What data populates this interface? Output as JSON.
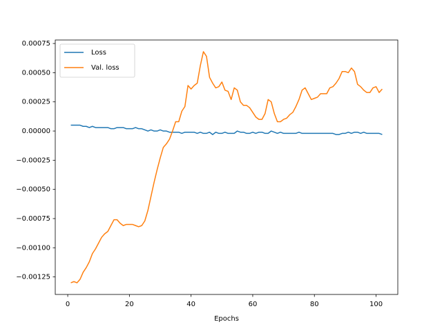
{
  "chart_data": {
    "type": "line",
    "xlabel": "Epochs",
    "x": [
      1,
      2,
      3,
      4,
      5,
      6,
      7,
      8,
      9,
      10,
      11,
      12,
      13,
      14,
      15,
      16,
      17,
      18,
      19,
      20,
      21,
      22,
      23,
      24,
      25,
      26,
      27,
      28,
      29,
      30,
      31,
      32,
      33,
      34,
      35,
      36,
      37,
      38,
      39,
      40,
      41,
      42,
      43,
      44,
      45,
      46,
      47,
      48,
      49,
      50,
      51,
      52,
      53,
      54,
      55,
      56,
      57,
      58,
      59,
      60,
      61,
      62,
      63,
      64,
      65,
      66,
      67,
      68,
      69,
      70,
      71,
      72,
      73,
      74,
      75,
      76,
      77,
      78,
      79,
      80,
      81,
      82,
      83,
      84,
      85,
      86,
      87,
      88,
      89,
      90,
      91,
      92,
      93,
      94,
      95,
      96,
      97,
      98,
      99,
      100,
      101,
      102
    ],
    "series": [
      {
        "name": "Loss",
        "color": "#1f77b4",
        "values": [
          5e-05,
          5e-05,
          5e-05,
          5e-05,
          4e-05,
          4e-05,
          3e-05,
          4e-05,
          3e-05,
          3e-05,
          3e-05,
          3e-05,
          3e-05,
          2e-05,
          2e-05,
          3e-05,
          3e-05,
          3e-05,
          2e-05,
          2e-05,
          2e-05,
          3e-05,
          2e-05,
          2e-05,
          1e-05,
          0.0,
          1e-05,
          0.0,
          0.0,
          1e-05,
          0.0,
          0.0,
          -1e-05,
          -1e-05,
          -1e-05,
          -1e-05,
          -2e-05,
          -1e-05,
          -1e-05,
          -1e-05,
          -1e-05,
          -2e-05,
          -1e-05,
          -2e-05,
          -2e-05,
          -1e-05,
          -3e-05,
          -1e-05,
          -2e-05,
          -2e-05,
          -1e-05,
          -2e-05,
          -2e-05,
          -2e-05,
          0.0,
          -1e-05,
          -1e-05,
          -2e-05,
          -2e-05,
          -1e-05,
          -2e-05,
          -1e-05,
          -1e-05,
          -2e-05,
          -2e-05,
          0.0,
          -1e-05,
          -2e-05,
          -1e-05,
          -2e-05,
          -2e-05,
          -2e-05,
          -2e-05,
          -2e-05,
          -1e-05,
          -2e-05,
          -2e-05,
          -2e-05,
          -2e-05,
          -2e-05,
          -2e-05,
          -2e-05,
          -2e-05,
          -2e-05,
          -2e-05,
          -2e-05,
          -3e-05,
          -3e-05,
          -2e-05,
          -2e-05,
          -1e-05,
          -2e-05,
          -1e-05,
          -1e-05,
          -2e-05,
          -1e-05,
          -2e-05,
          -2e-05,
          -2e-05,
          -2e-05,
          -2e-05,
          -3e-05
        ]
      },
      {
        "name": "Val. loss",
        "color": "#ff7f0e",
        "values": [
          -0.0013,
          -0.00129,
          -0.0013,
          -0.00127,
          -0.00121,
          -0.00117,
          -0.00112,
          -0.00105,
          -0.00101,
          -0.00096,
          -0.00091,
          -0.00088,
          -0.00086,
          -0.00081,
          -0.00076,
          -0.00076,
          -0.00079,
          -0.00081,
          -0.0008,
          -0.0008,
          -0.0008,
          -0.00081,
          -0.00082,
          -0.00081,
          -0.00077,
          -0.00068,
          -0.00056,
          -0.00044,
          -0.00033,
          -0.00023,
          -0.00014,
          -0.00011,
          -7e-05,
          0.0,
          8e-05,
          8e-05,
          0.00017,
          0.00021,
          0.00039,
          0.00036,
          0.00039,
          0.00041,
          0.00056,
          0.00068,
          0.00064,
          0.00046,
          0.00041,
          0.00037,
          0.00038,
          0.00042,
          0.00035,
          0.00034,
          0.00027,
          0.00037,
          0.00035,
          0.00025,
          0.00022,
          0.00022,
          0.0002,
          0.00016,
          0.00012,
          0.0001,
          0.0001,
          0.00015,
          0.00027,
          0.00025,
          0.00015,
          8e-05,
          8e-05,
          0.0001,
          0.00011,
          0.00014,
          0.00016,
          0.00021,
          0.00027,
          0.00035,
          0.00037,
          0.00032,
          0.00027,
          0.00028,
          0.00029,
          0.00032,
          0.00032,
          0.00032,
          0.00037,
          0.00038,
          0.00041,
          0.00045,
          0.00051,
          0.00051,
          0.0005,
          0.00054,
          0.00051,
          0.0004,
          0.00038,
          0.00035,
          0.00033,
          0.00033,
          0.00037,
          0.00038,
          0.00033,
          0.00036
        ]
      }
    ],
    "xlim": [
      -4.05,
      107.05
    ],
    "ylim": [
      -0.0014,
      0.00078
    ],
    "xticks": [
      0,
      20,
      40,
      60,
      80,
      100
    ],
    "yticks": [
      {
        "value": -0.00125,
        "label": "−0.00125"
      },
      {
        "value": -0.001,
        "label": "−0.00100"
      },
      {
        "value": -0.00075,
        "label": "−0.00075"
      },
      {
        "value": -0.0005,
        "label": "−0.00050"
      },
      {
        "value": -0.00025,
        "label": "−0.00025"
      },
      {
        "value": 0,
        "label": "0.00000"
      },
      {
        "value": 0.00025,
        "label": "0.00025"
      },
      {
        "value": 0.0005,
        "label": "0.00050"
      },
      {
        "value": 0.00075,
        "label": "0.00075"
      }
    ],
    "grid": false,
    "legend": "upper left"
  }
}
